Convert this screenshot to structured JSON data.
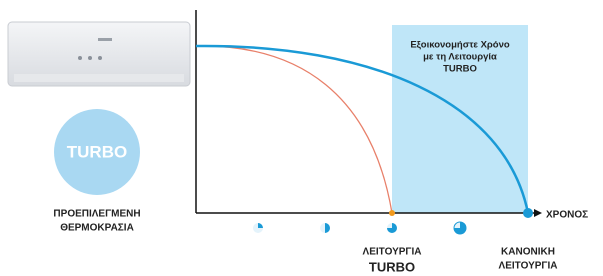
{
  "callout": {
    "lines": [
      "Εξοικονομήστε Χρόνο",
      "με τη Λειτουργία",
      "TURBO"
    ]
  },
  "badge": "TURBO",
  "default_temperature": {
    "lines": [
      "ΠΡΟΕΠΙΛΕΓΜΕΝΗ",
      "ΘΕΡΜΟΚΡΑΣΙΑ"
    ]
  },
  "x_axis_label": "ΧΡΟΝΟΣ",
  "turbo_mode": {
    "lines": [
      "ΛΕΙΤΟΥΡΓΙΑ",
      "TURBO"
    ]
  },
  "normal_mode": {
    "lines": [
      "ΚΑΝΟΝΙΚΗ",
      "ΛΕΙΤΟΥΡΓΙΑ"
    ]
  }
}
